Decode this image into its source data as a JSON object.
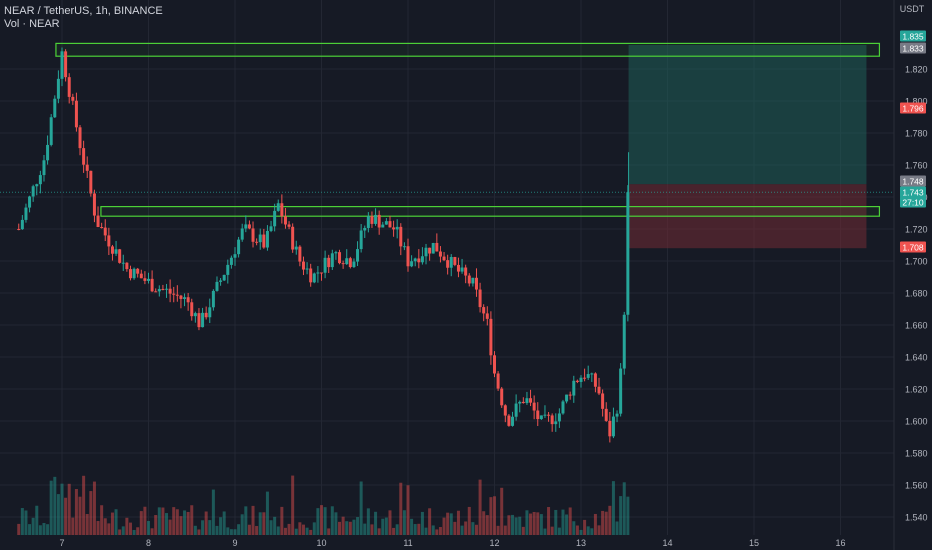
{
  "header": {
    "title": "NEAR / TetherUS, 1h, BINANCE",
    "volume_label": "Vol · NEAR"
  },
  "axis": {
    "currency": "USDT"
  },
  "colors": {
    "background": "#161a25",
    "up": "#26a69a",
    "down": "#ef5350",
    "grid": "#232733",
    "zone_border": "#4cd137",
    "text": "#b2b5be"
  },
  "badges": [
    {
      "value": "1.835",
      "color": "#26a69a"
    },
    {
      "value": "1.833",
      "color": "#787b86"
    },
    {
      "value": "1.796",
      "color": "#ef5350"
    },
    {
      "value": "1.748",
      "color": "#787b86"
    },
    {
      "value": "1.743",
      "color": "#26a69a"
    },
    {
      "value": "27:10",
      "color": "#26a69a"
    },
    {
      "value": "1.708",
      "color": "#ef5350"
    }
  ],
  "chart_data": {
    "type": "candlestick",
    "timeframe": "1h",
    "ylim": [
      1.533,
      1.847
    ],
    "y_ticks": [
      1.54,
      1.56,
      1.58,
      1.6,
      1.62,
      1.64,
      1.66,
      1.68,
      1.7,
      1.72,
      1.74,
      1.76,
      1.78,
      1.8,
      1.82
    ],
    "x_ticks": [
      "7",
      "8",
      "9",
      "10",
      "11",
      "12",
      "13",
      "14",
      "15",
      "16"
    ],
    "zones": [
      {
        "type": "resistance",
        "price_from": 1.828,
        "price_to": 1.836,
        "start_day": 6.93,
        "end_day": 16.45
      },
      {
        "type": "resistance",
        "price_from": 1.728,
        "price_to": 1.734,
        "start_day": 7.45,
        "end_day": 16.45
      }
    ],
    "position": {
      "entry": 1.748,
      "target": 1.835,
      "stop": 1.708,
      "start_day": 13.55,
      "end_day": 16.3
    },
    "key_points": [
      {
        "day": 6.5,
        "price": 1.72
      },
      {
        "day": 6.8,
        "price": 1.765
      },
      {
        "day": 7.0,
        "price": 1.83
      },
      {
        "day": 7.2,
        "price": 1.775
      },
      {
        "day": 7.4,
        "price": 1.725
      },
      {
        "day": 7.75,
        "price": 1.695
      },
      {
        "day": 8.05,
        "price": 1.685
      },
      {
        "day": 8.45,
        "price": 1.675
      },
      {
        "day": 8.6,
        "price": 1.66
      },
      {
        "day": 8.85,
        "price": 1.69
      },
      {
        "day": 9.1,
        "price": 1.72
      },
      {
        "day": 9.35,
        "price": 1.71
      },
      {
        "day": 9.5,
        "price": 1.735
      },
      {
        "day": 9.75,
        "price": 1.7
      },
      {
        "day": 9.9,
        "price": 1.69
      },
      {
        "day": 10.15,
        "price": 1.705
      },
      {
        "day": 10.35,
        "price": 1.7
      },
      {
        "day": 10.55,
        "price": 1.728
      },
      {
        "day": 10.85,
        "price": 1.72
      },
      {
        "day": 11.0,
        "price": 1.7
      },
      {
        "day": 11.3,
        "price": 1.71
      },
      {
        "day": 11.55,
        "price": 1.695
      },
      {
        "day": 11.75,
        "price": 1.685
      },
      {
        "day": 11.92,
        "price": 1.66
      },
      {
        "day": 12.0,
        "price": 1.63
      },
      {
        "day": 12.15,
        "price": 1.6
      },
      {
        "day": 12.35,
        "price": 1.615
      },
      {
        "day": 12.55,
        "price": 1.598
      },
      {
        "day": 12.75,
        "price": 1.605
      },
      {
        "day": 12.92,
        "price": 1.625
      },
      {
        "day": 13.05,
        "price": 1.63
      },
      {
        "day": 13.2,
        "price": 1.62
      },
      {
        "day": 13.32,
        "price": 1.59
      },
      {
        "day": 13.42,
        "price": 1.61
      },
      {
        "day": 13.48,
        "price": 1.64
      },
      {
        "day": 13.52,
        "price": 1.7
      },
      {
        "day": 13.55,
        "price": 1.743
      }
    ]
  }
}
